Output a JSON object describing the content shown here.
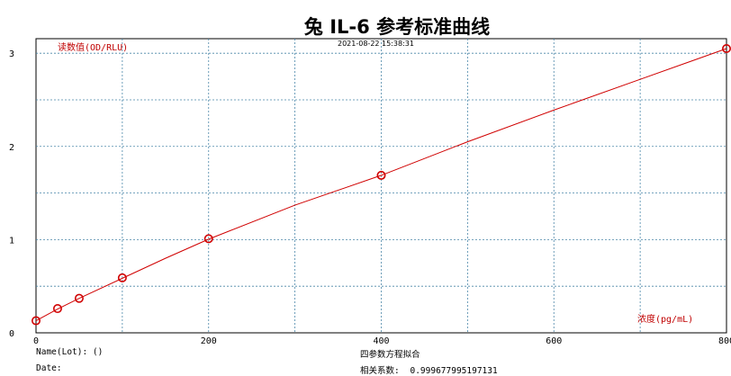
{
  "chart_data": {
    "type": "line",
    "title": "兔 IL-6 参考标准曲线",
    "timestamp": "2021-08-22 15:38:31",
    "ylabel": "读数值(OD/RLU)",
    "xlabel": "浓度(pg/mL)",
    "xlim": [
      0,
      800
    ],
    "ylim": [
      0,
      3.05
    ],
    "xticks": [
      0,
      200,
      400,
      600,
      800
    ],
    "yticks": [
      0,
      1,
      2,
      3
    ],
    "grid": true,
    "points": {
      "x": [
        0,
        25,
        50,
        100,
        200,
        400,
        800
      ],
      "y": [
        0.13,
        0.26,
        0.37,
        0.59,
        1.01,
        1.69,
        3.05
      ]
    },
    "fit_curve": {
      "x": [
        0,
        25,
        50,
        100,
        150,
        200,
        300,
        400,
        500,
        600,
        700,
        800
      ],
      "y": [
        0.13,
        0.255,
        0.37,
        0.585,
        0.8,
        1.005,
        1.37,
        1.69,
        2.05,
        2.39,
        2.72,
        3.05
      ]
    },
    "colors": {
      "curve": "#d00000",
      "axis_label": "#c00000",
      "grid": "#4a86a8"
    }
  },
  "footer": {
    "name_label": "Name(Lot): ()",
    "date_label": "Date:",
    "method": "四参数方程拟合",
    "correlation_label": "相关系数:",
    "correlation_value": "0.999677995197131"
  }
}
